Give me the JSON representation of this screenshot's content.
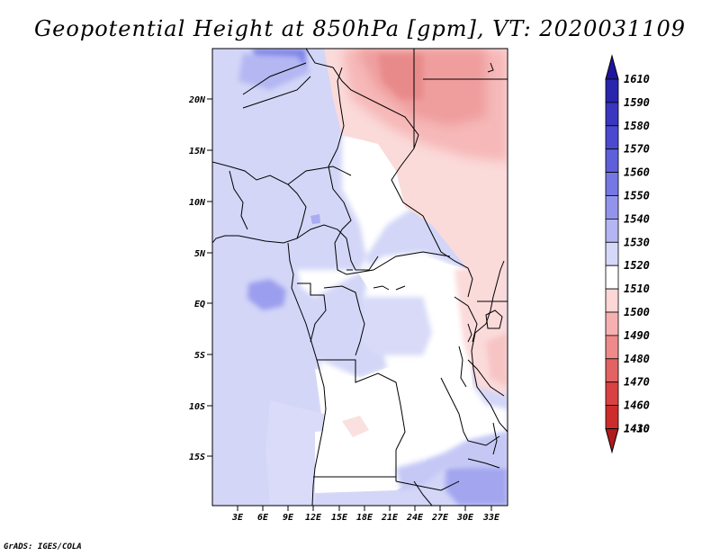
{
  "title": "Geopotential Height at 850hPa [gpm], VT: 2020031109",
  "credit": "GrADS: IGES/COLA",
  "map": {
    "region": "Central Africa",
    "lat_labels": [
      "20N",
      "15N",
      "10N",
      "5N",
      "EQ",
      "5S",
      "10S",
      "15S"
    ],
    "lon_labels": [
      "3E",
      "6E",
      "9E",
      "12E",
      "15E",
      "18E",
      "21E",
      "24E",
      "27E",
      "30E",
      "33E"
    ],
    "colors": {
      "land_white": "#ffffff",
      "ocean": "#cfd3f6",
      "country_lines": "#000000"
    }
  },
  "colorbar": {
    "levels": [
      1610,
      1590,
      1580,
      1570,
      1560,
      1550,
      1540,
      1530,
      1520,
      1510,
      1500,
      1490,
      1480,
      1470,
      1460,
      1430,
      1410
    ],
    "colors": [
      "#1f149e",
      "#2a25ad",
      "#3a36c0",
      "#4b49cf",
      "#5e5fda",
      "#7577e3",
      "#9294eb",
      "#b3b6f2",
      "#d6d8f9",
      "#ffffff",
      "#fdd6d6",
      "#f7b0b0",
      "#ee8a8a",
      "#e36262",
      "#d94242",
      "#cc2c2c",
      "#b01b1b"
    ]
  }
}
